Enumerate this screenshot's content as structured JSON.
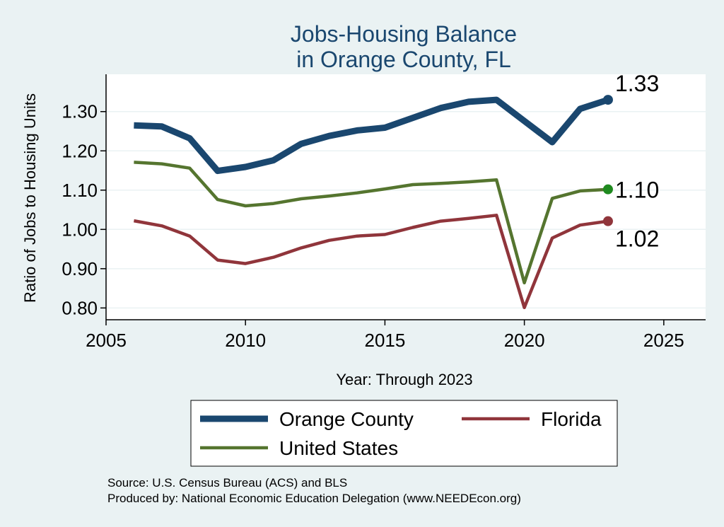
{
  "chart_data": {
    "type": "line",
    "title": [
      "Jobs-Housing Balance",
      "in Orange County, FL"
    ],
    "xlabel": "Year: Through 2023",
    "ylabel": "Ratio of Jobs to Housing Units",
    "xlim": [
      2005,
      2026.5
    ],
    "ylim": [
      0.77,
      1.395
    ],
    "xticks": [
      2005,
      2010,
      2015,
      2020,
      2025
    ],
    "yticks": [
      0.8,
      0.9,
      1.0,
      1.1,
      1.2,
      1.3
    ],
    "ytick_labels": [
      "0.80",
      "0.90",
      "1.00",
      "1.10",
      "1.20",
      "1.30"
    ],
    "x": [
      2006,
      2007,
      2008,
      2009,
      2010,
      2011,
      2012,
      2013,
      2014,
      2015,
      2016,
      2017,
      2018,
      2019,
      2020,
      2021,
      2022,
      2023
    ],
    "series": [
      {
        "name": "Orange County",
        "color": "#1a476f",
        "end_label": "1.33",
        "values": [
          1.265,
          1.262,
          1.232,
          1.149,
          1.159,
          1.176,
          1.218,
          1.238,
          1.252,
          1.259,
          1.284,
          1.309,
          1.325,
          1.33,
          1.276,
          1.222,
          1.307,
          1.33
        ]
      },
      {
        "name": "United States",
        "color": "#55752f",
        "end_label": "1.10",
        "values": [
          1.171,
          1.167,
          1.156,
          1.076,
          1.06,
          1.066,
          1.078,
          1.085,
          1.093,
          1.103,
          1.114,
          1.117,
          1.121,
          1.126,
          0.864,
          1.079,
          1.098,
          1.102
        ]
      },
      {
        "name": "Florida",
        "color": "#90353b",
        "end_label": "1.02",
        "values": [
          1.022,
          1.009,
          0.983,
          0.922,
          0.913,
          0.929,
          0.953,
          0.972,
          0.983,
          0.987,
          1.005,
          1.021,
          1.028,
          1.036,
          0.801,
          0.978,
          1.011,
          1.021
        ]
      }
    ],
    "grid": true,
    "legend_position": "bottom"
  },
  "source_note": "Source: U.S. Census Bureau (ACS) and BLS",
  "producer_note": "Produced by: National Economic Education Delegation (www.NEEDEcon.org)"
}
